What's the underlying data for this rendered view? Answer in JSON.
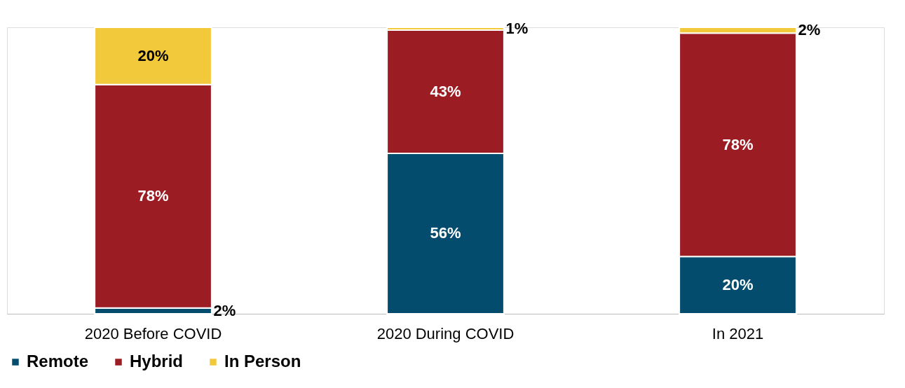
{
  "chart_data": {
    "type": "bar",
    "stacked": true,
    "categories": [
      "2020 Before COVID",
      "2020 During COVID",
      "In 2021"
    ],
    "series": [
      {
        "name": "Remote",
        "color": "#034c6e",
        "values": [
          2,
          56,
          20
        ],
        "value_labels": [
          "2%",
          "56%",
          "20%"
        ]
      },
      {
        "name": "Hybrid",
        "color": "#9b1c23",
        "values": [
          78,
          43,
          78
        ],
        "value_labels": [
          "78%",
          "43%",
          "78%"
        ]
      },
      {
        "name": "In Person",
        "color": "#f2c93b",
        "values": [
          20,
          1,
          2
        ],
        "value_labels": [
          "20%",
          "1%",
          "2%"
        ]
      }
    ],
    "ylim": [
      0,
      100
    ],
    "legend": "bottom"
  }
}
